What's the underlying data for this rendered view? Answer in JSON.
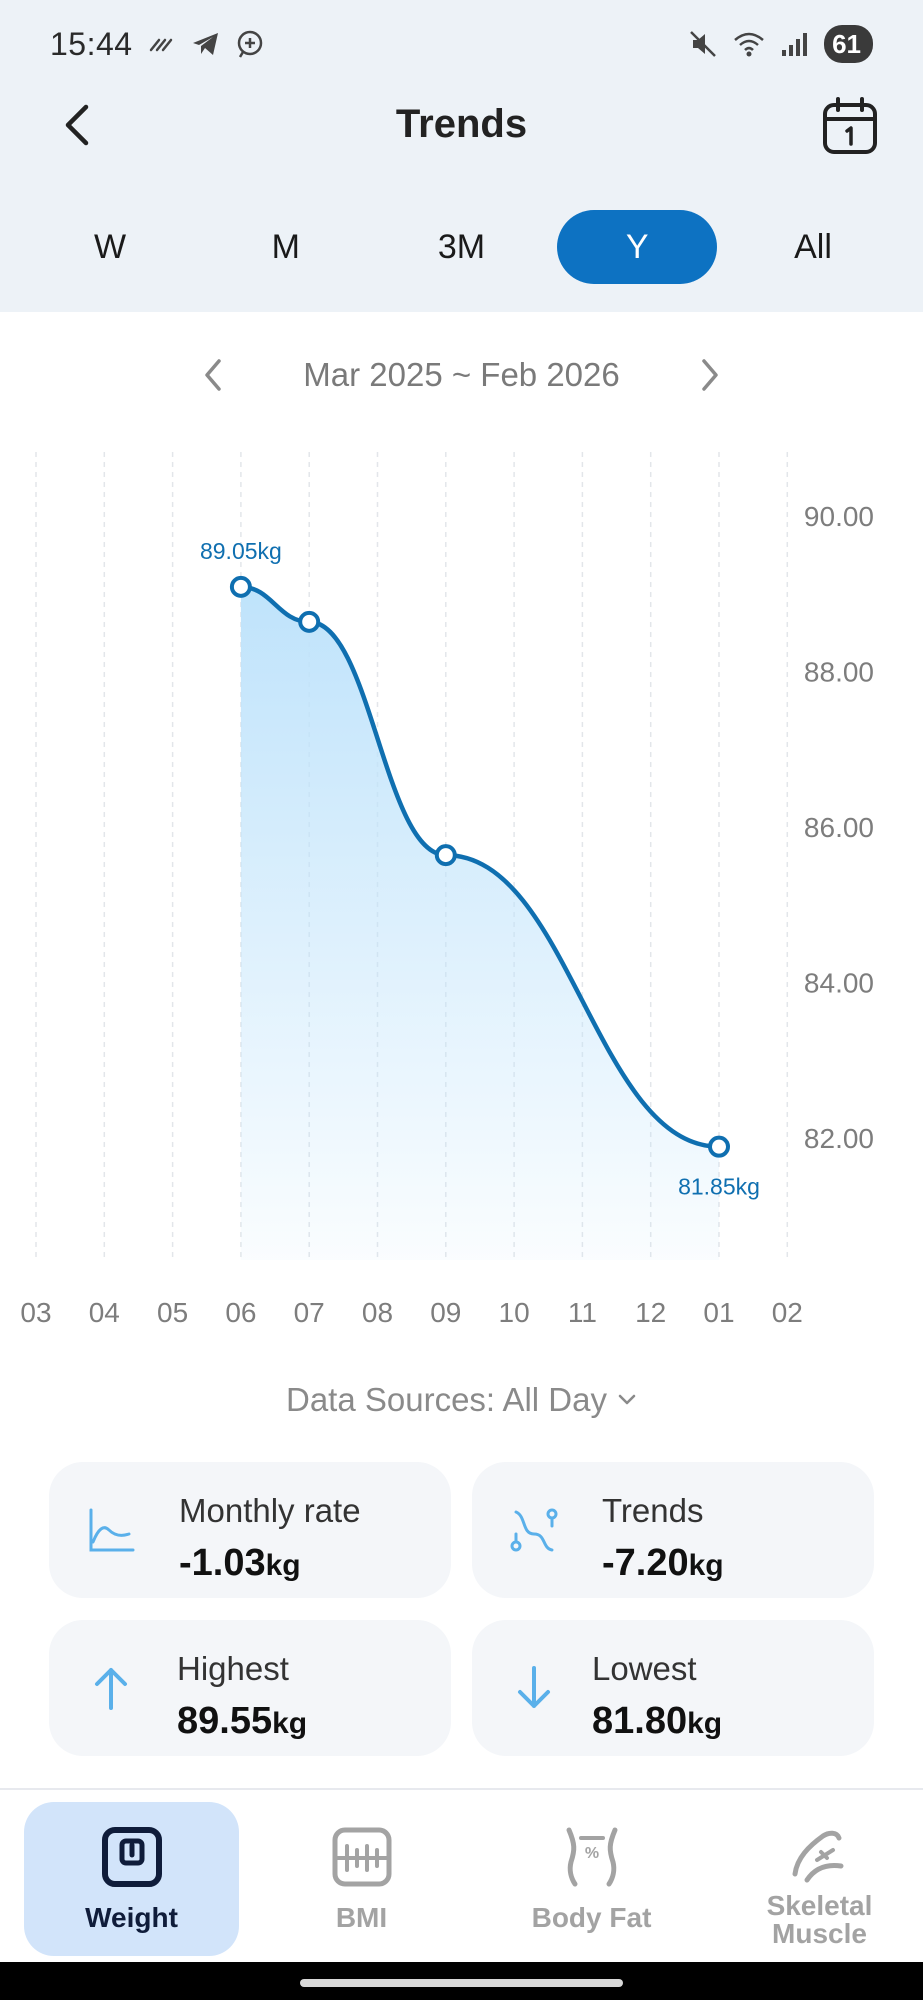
{
  "status_bar": {
    "time": "15:44",
    "battery": "61"
  },
  "header": {
    "title": "Trends"
  },
  "range_tabs": [
    {
      "label": "W",
      "active": false
    },
    {
      "label": "M",
      "active": false
    },
    {
      "label": "3M",
      "active": false
    },
    {
      "label": "Y",
      "active": true
    },
    {
      "label": "All",
      "active": false
    }
  ],
  "period": {
    "label": "Mar 2025 ~ Feb 2026"
  },
  "chart_data": {
    "type": "area",
    "x_categories": [
      "03",
      "04",
      "05",
      "06",
      "07",
      "08",
      "09",
      "10",
      "11",
      "12",
      "01",
      "02"
    ],
    "series": [
      {
        "x": [
          "06",
          "07",
          "09",
          "01"
        ],
        "values": [
          89.05,
          88.6,
          85.6,
          81.85
        ]
      }
    ],
    "y_ticks": [
      "90.00",
      "88.00",
      "86.00",
      "84.00",
      "82.00"
    ],
    "ylim": [
      80.0,
      90.8
    ],
    "annotations": [
      {
        "x": "06",
        "text": "89.05kg"
      },
      {
        "x": "01",
        "text": "81.85kg"
      }
    ],
    "y_axis_side": "right",
    "grid": "vertical-dashed",
    "line_color": "#0f6fb0",
    "fill_color": "#bfe3fb"
  },
  "data_sources": {
    "label": "Data Sources: All Day"
  },
  "stats": {
    "monthly_rate": {
      "label": "Monthly rate",
      "value": "-1.03",
      "unit": "kg"
    },
    "trends": {
      "label": "Trends",
      "value": "-7.20",
      "unit": "kg"
    },
    "highest": {
      "label": "Highest",
      "value": "89.55",
      "unit": "kg"
    },
    "lowest": {
      "label": "Lowest",
      "value": "81.80",
      "unit": "kg"
    }
  },
  "bottom_nav": {
    "weight": {
      "label": "Weight",
      "active": true
    },
    "bmi": {
      "label": "BMI"
    },
    "body_fat": {
      "label": "Body Fat"
    },
    "skeletal_muscle": {
      "line1": "Skeletal",
      "line2": "Muscle"
    }
  },
  "colors": {
    "accent": "#0d72c2",
    "header_bg": "#edf2f7",
    "card_bg": "#f4f6f9",
    "icon_blue": "#5ab0ea",
    "nav_active_bg": "#d2e4fa"
  }
}
